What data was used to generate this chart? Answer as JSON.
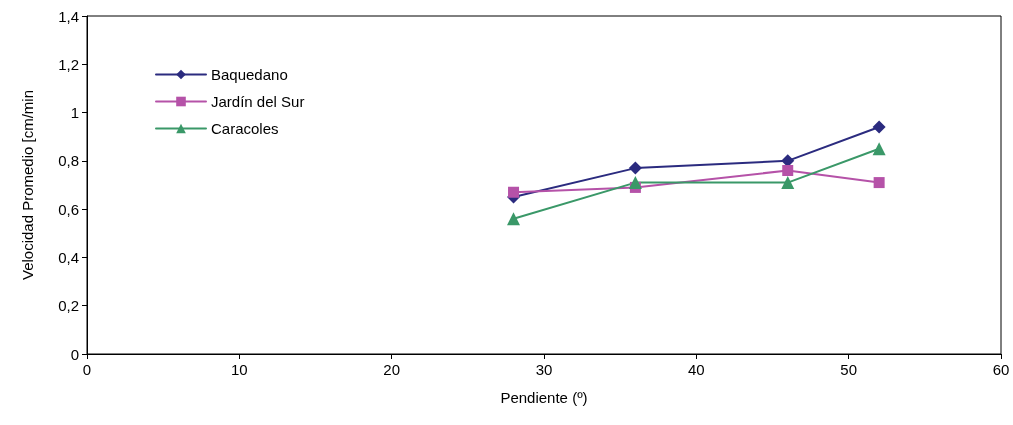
{
  "chart_data": {
    "type": "line",
    "xlabel": "Pendiente (º)",
    "ylabel": "Velocidad Promedio [cm/min",
    "x": [
      28,
      36,
      46,
      52
    ],
    "series": [
      {
        "name": "Baquedano",
        "color": "#2b2b7f",
        "marker": "diamond",
        "values": [
          0.65,
          0.77,
          0.8,
          0.94
        ]
      },
      {
        "name": "Jardín del Sur",
        "color": "#b552a8",
        "marker": "square",
        "values": [
          0.67,
          0.69,
          0.76,
          0.71
        ]
      },
      {
        "name": "Caracoles",
        "color": "#3a9868",
        "marker": "triangle",
        "values": [
          0.56,
          0.71,
          0.71,
          0.85
        ]
      }
    ],
    "xlim": [
      0,
      60
    ],
    "xticks": [
      0,
      10,
      20,
      30,
      40,
      50,
      60
    ],
    "ylim": [
      0,
      1.4
    ],
    "yticks": [
      0,
      {
        "value": 0.2,
        "label": "0,2"
      },
      {
        "value": 0.4,
        "label": "0,4"
      },
      {
        "value": 0.6,
        "label": "0,6"
      },
      {
        "value": 0.8,
        "label": "0,8"
      },
      1,
      {
        "value": 1.2,
        "label": "1,2"
      },
      {
        "value": 1.4,
        "label": "1,4"
      }
    ],
    "grid": false,
    "legend": "top left",
    "line_style": "solid"
  }
}
